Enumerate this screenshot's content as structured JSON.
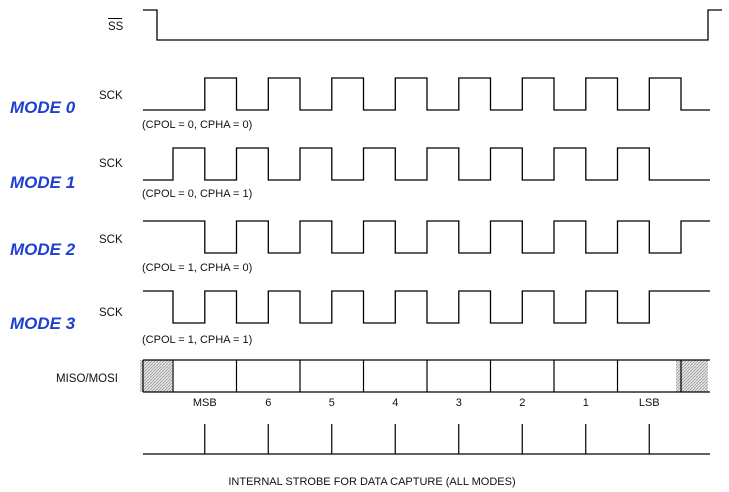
{
  "ss": {
    "label": "SS",
    "overbar": true
  },
  "modes": [
    {
      "name": "MODE 0",
      "signal": "SCK",
      "params": "(CPOL = 0, CPHA = 0)",
      "cpol": 0,
      "cpha": 0
    },
    {
      "name": "MODE 1",
      "signal": "SCK",
      "params": "(CPOL = 0, CPHA = 1)",
      "cpol": 0,
      "cpha": 1
    },
    {
      "name": "MODE 2",
      "signal": "SCK",
      "params": "(CPOL = 1, CPHA = 0)",
      "cpol": 1,
      "cpha": 0
    },
    {
      "name": "MODE 3",
      "signal": "SCK",
      "params": "(CPOL = 1, CPHA = 1)",
      "cpol": 1,
      "cpha": 1
    }
  ],
  "data_line": {
    "label": "MISO/MOSI",
    "bits": [
      "MSB",
      "6",
      "5",
      "4",
      "3",
      "2",
      "1",
      "LSB"
    ]
  },
  "strobe_caption": "INTERNAL STROBE FOR DATA CAPTURE (ALL MODES)",
  "colors": {
    "mode_label": "#1f3fd0",
    "line": "#000000",
    "hatch": "#b5b5b5"
  }
}
